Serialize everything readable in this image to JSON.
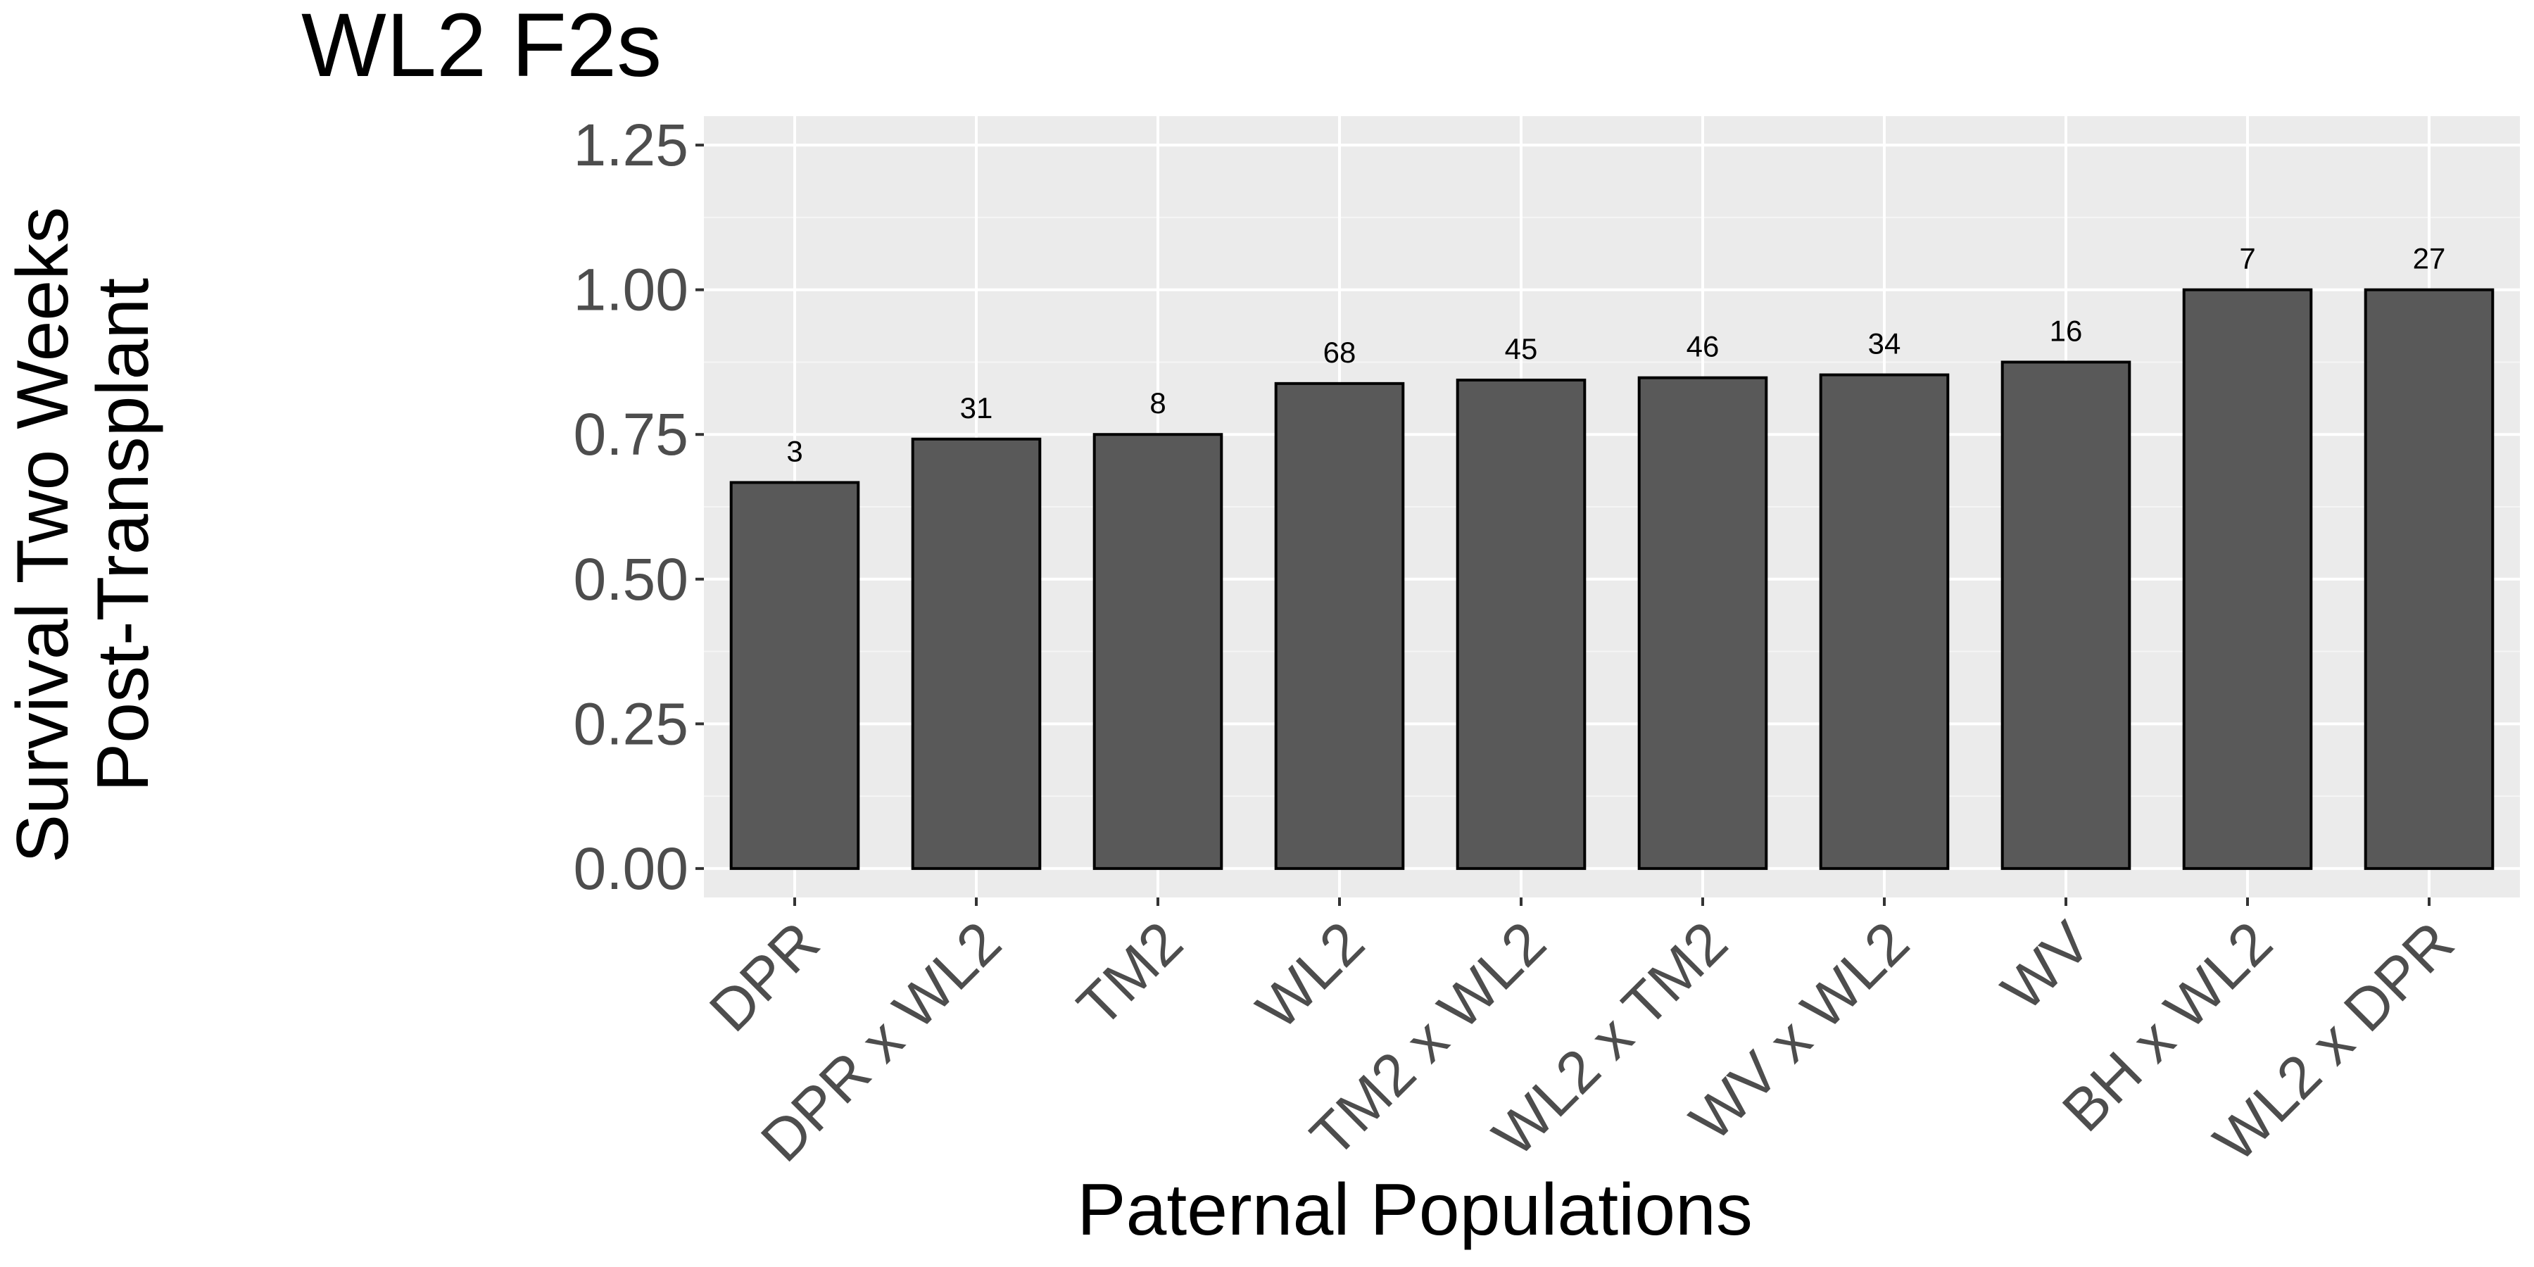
{
  "chart_data": {
    "type": "bar",
    "title": "WL2 F2s",
    "xlabel": "Paternal Populations",
    "ylabel_lines": [
      "Survival Two Weeks",
      "Post-Transplant"
    ],
    "categories": [
      "DPR",
      "DPR x WL2",
      "TM2",
      "WL2",
      "TM2 x WL2",
      "WL2 x TM2",
      "WV x WL2",
      "WV",
      "BH x WL2",
      "WL2 x DPR"
    ],
    "values": [
      0.667,
      0.742,
      0.75,
      0.838,
      0.844,
      0.848,
      0.853,
      0.875,
      1.0,
      1.0
    ],
    "bar_labels": [
      "3",
      "31",
      "8",
      "68",
      "45",
      "46",
      "34",
      "16",
      "7",
      "27"
    ],
    "ylim": [
      -0.05,
      1.3
    ],
    "yticks": [
      0,
      0.25,
      0.5,
      0.75,
      1.0,
      1.25
    ],
    "ytick_labels": [
      "0.00",
      "0.25",
      "0.50",
      "0.75",
      "1.00",
      "1.25"
    ],
    "grid": true,
    "legend": "none"
  },
  "colors": {
    "panel_background": "#ebebeb",
    "grid_major": "#ffffff",
    "grid_minor": "#f5f5f5",
    "bar_fill": "#595959",
    "bar_outline": "#000000",
    "tick_text": "#4d4d4d",
    "tick_mark": "#333333"
  }
}
